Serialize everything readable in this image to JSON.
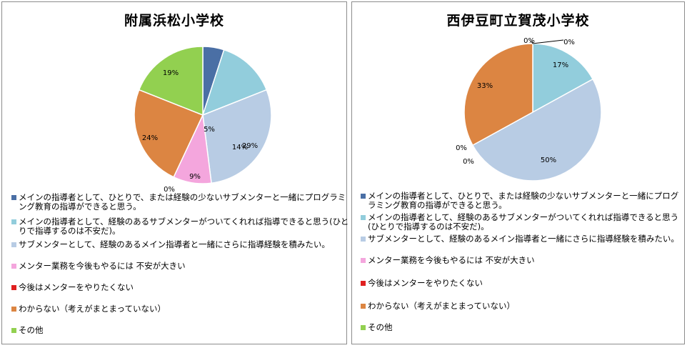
{
  "colors": {
    "main": "#4a6fa5",
    "sub": "#92cddc",
    "gain": "#b8cce4",
    "anxious": "#f4a6dd",
    "nomore": "#e02020",
    "unknown": "#dc8542",
    "other": "#92d050"
  },
  "chart_data": [
    {
      "type": "pie",
      "title": "附属浜松小学校",
      "categories": [
        "メインの指導者として、ひとりで、または経験の少ないサブメンターと一緒にプログラミング教育の指導ができると思う。",
        "メインの指導者として、経験のあるサブメンターがついてくれれば指導できると思う(ひとりで指導するのは不安だ)。",
        "サブメンターとして、経験のあるメイン指導者と一緒にさらに指導経験を積みたい。",
        "メンター業務を今後もやるには 不安が大きい",
        "今後はメンターをやりたくない",
        "わからない（考えがまとまっていない）",
        "その他"
      ],
      "values": [
        5,
        14,
        29,
        9,
        0,
        24,
        19
      ],
      "value_labels": [
        "5%",
        "14%",
        "29%",
        "9%",
        "0%",
        "24%",
        "19%"
      ],
      "color_keys": [
        "main",
        "sub",
        "gain",
        "anxious",
        "nomore",
        "unknown",
        "other"
      ],
      "legend_position": "bottom"
    },
    {
      "type": "pie",
      "title": "西伊豆町立賀茂小学校",
      "categories": [
        "メインの指導者として、ひとりで、または経験の少ないサブメンターと一緒にプログラミング教育の指導ができると思う。",
        "メインの指導者として、経験のあるサブメンターがついてくれれば指導できると思う(ひとりで指導するのは不安だ)。",
        "サブメンターとして、経験のあるメイン指導者と一緒にさらに指導経験を積みたい。",
        "メンター業務を今後もやるには 不安が大きい",
        "今後はメンターをやりたくない",
        "わからない（考えがまとまっていない）",
        "その他"
      ],
      "values": [
        0,
        17,
        50,
        0,
        0,
        33,
        0
      ],
      "value_labels": [
        "0%",
        "17%",
        "50%",
        "0%",
        "0%",
        "33%",
        "0%"
      ],
      "color_keys": [
        "main",
        "sub",
        "gain",
        "anxious",
        "nomore",
        "unknown",
        "other"
      ],
      "legend_position": "bottom"
    }
  ]
}
